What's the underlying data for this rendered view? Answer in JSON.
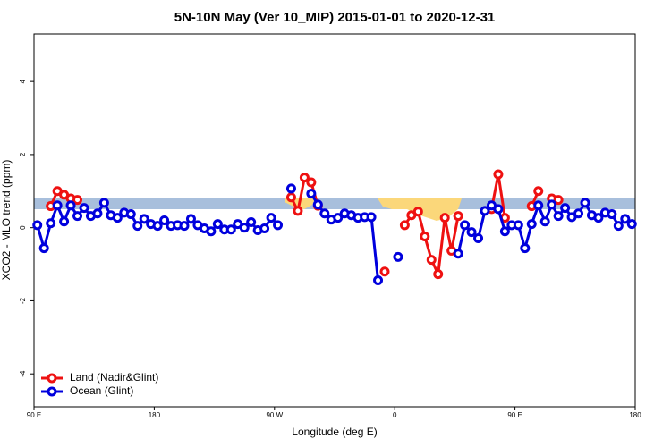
{
  "chart_data": {
    "type": "line",
    "title": "5N-10N May (Ver 10_MIP)   2015-01-01 to 2020-12-31",
    "x_label": "Longitude (deg E)",
    "y_label": "XCO2 - MLO trend (ppm)",
    "x": [
      92.5,
      97.5,
      102.5,
      107.5,
      112.5,
      117.5,
      122.5,
      127.5,
      132.5,
      137.5,
      142.5,
      147.5,
      152.5,
      157.5,
      162.5,
      167.5,
      172.5,
      177.5,
      182.5,
      187.5,
      192.5,
      197.5,
      202.5,
      207.5,
      212.5,
      217.5,
      222.5,
      227.5,
      232.5,
      237.5,
      242.5,
      247.5,
      252.5,
      257.5,
      262.5,
      267.5,
      272.5,
      277.5,
      282.5,
      287.5,
      292.5,
      297.5,
      302.5,
      307.5,
      312.5,
      317.5,
      322.5,
      327.5,
      332.5,
      337.5,
      342.5,
      347.5,
      352.5,
      357.5,
      362.5,
      367.5,
      372.5,
      377.5,
      382.5,
      387.5,
      392.5,
      397.5,
      402.5,
      407.5,
      412.5,
      417.5,
      422.5,
      427.5,
      432.5,
      437.5,
      442.5,
      447.5,
      452.5,
      457.5,
      462.5,
      467.5,
      472.5,
      477.5,
      482.5,
      487.5,
      492.5,
      497.5,
      502.5,
      507.5,
      512.5,
      517.5,
      522.5,
      527.5,
      532.5,
      537.5
    ],
    "series": [
      {
        "name": "Land (Nadir&Glint)",
        "color": "#ee1111",
        "values": [
          null,
          null,
          0.59,
          1.0,
          0.9,
          0.8,
          0.76,
          null,
          null,
          null,
          null,
          null,
          null,
          null,
          null,
          null,
          null,
          null,
          null,
          null,
          null,
          null,
          null,
          null,
          null,
          null,
          null,
          null,
          null,
          null,
          null,
          null,
          null,
          null,
          null,
          null,
          null,
          null,
          0.83,
          0.46,
          1.37,
          1.24,
          0.6,
          null,
          null,
          null,
          null,
          null,
          null,
          null,
          null,
          null,
          -1.2,
          null,
          null,
          0.07,
          0.34,
          0.44,
          -0.24,
          -0.88,
          -1.27,
          0.27,
          -0.63,
          0.32,
          null,
          null,
          null,
          null,
          0.51,
          1.46,
          0.27,
          null,
          null,
          null,
          0.59,
          1.0,
          null,
          0.8,
          0.76,
          null,
          null,
          null,
          null,
          null,
          null,
          null,
          null,
          null,
          null,
          null
        ]
      },
      {
        "name": "Ocean (Glint)",
        "color": "#0000dd",
        "values": [
          0.07,
          -0.56,
          0.12,
          0.61,
          0.17,
          0.61,
          0.32,
          0.54,
          0.32,
          0.39,
          0.68,
          0.34,
          0.27,
          0.41,
          0.37,
          0.05,
          0.24,
          0.1,
          0.05,
          0.2,
          0.05,
          0.07,
          0.05,
          0.24,
          0.07,
          -0.02,
          -0.1,
          0.1,
          -0.05,
          -0.05,
          0.1,
          0,
          0.15,
          -0.07,
          -0.02,
          0.27,
          0.07,
          null,
          1.07,
          null,
          null,
          0.93,
          0.63,
          0.39,
          0.22,
          0.27,
          0.39,
          0.34,
          0.27,
          0.29,
          0.29,
          -1.44,
          null,
          null,
          -0.8,
          null,
          null,
          null,
          null,
          null,
          null,
          null,
          null,
          -0.71,
          0.07,
          -0.12,
          -0.29,
          0.46,
          0.61,
          0.51,
          -0.1,
          0.07,
          0.07,
          -0.56,
          0.1,
          0.61,
          0.17,
          0.63,
          0.32,
          0.54,
          0.29,
          0.39,
          0.68,
          0.34,
          0.27,
          0.41,
          0.37,
          0.05,
          0.24,
          0.1
        ]
      }
    ],
    "xlim": [
      90,
      540
    ],
    "ylim": [
      -4.9,
      5.3
    ],
    "xticks": [
      {
        "value": 90,
        "label": "90 E"
      },
      180,
      {
        "value": 270,
        "label": "90 W"
      },
      {
        "value": 360,
        "label": "0"
      },
      {
        "value": 450,
        "label": "90 E"
      },
      {
        "value": 540,
        "label": "180"
      }
    ],
    "yticks": [
      -4,
      -2,
      0,
      2,
      4
    ],
    "legend": "bottom-left"
  }
}
